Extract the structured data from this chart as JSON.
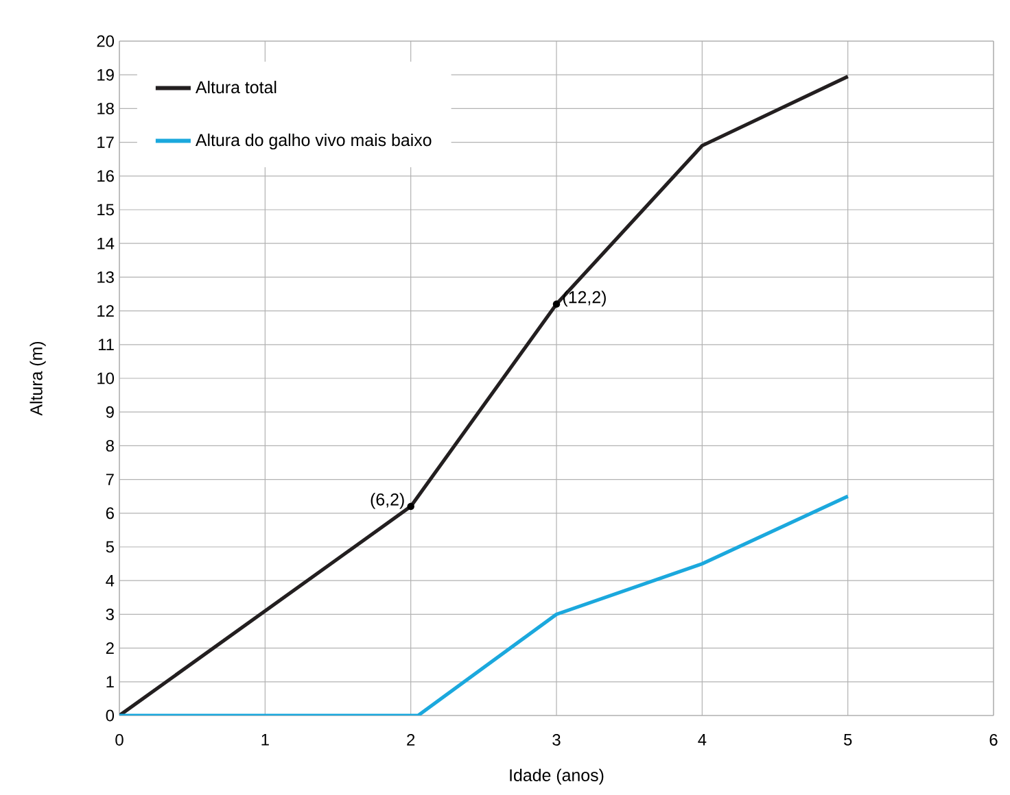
{
  "chart_data": {
    "type": "line",
    "xlabel": "Idade (anos)",
    "ylabel": "Altura (m)",
    "xlim": [
      0,
      6
    ],
    "xticks": [
      0,
      1,
      2,
      3,
      4,
      5,
      6
    ],
    "ylim": [
      0,
      20
    ],
    "yticks": [
      0,
      1,
      2,
      3,
      4,
      5,
      6,
      7,
      8,
      9,
      10,
      11,
      12,
      13,
      14,
      15,
      16,
      17,
      18,
      19,
      20
    ],
    "grid": true,
    "legend": "top left",
    "marker": "none",
    "line_style": "solid",
    "series": [
      {
        "name": "Altura total",
        "color": "#231f20",
        "x": [
          0,
          1,
          2,
          3,
          4,
          5
        ],
        "values": [
          0,
          3.1,
          6.2,
          12.2,
          16.9,
          18.95
        ]
      },
      {
        "name": "Altura do galho vivo mais baixo",
        "color": "#1ba8dd",
        "x": [
          0,
          2.05,
          3,
          4,
          5
        ],
        "values": [
          0,
          0,
          3,
          4.5,
          6.5
        ]
      }
    ],
    "annotations": [
      {
        "text": "(6,2)",
        "x": 2,
        "y": 6.2
      },
      {
        "text": "(12,2)",
        "x": 3,
        "y": 12.2
      }
    ]
  }
}
